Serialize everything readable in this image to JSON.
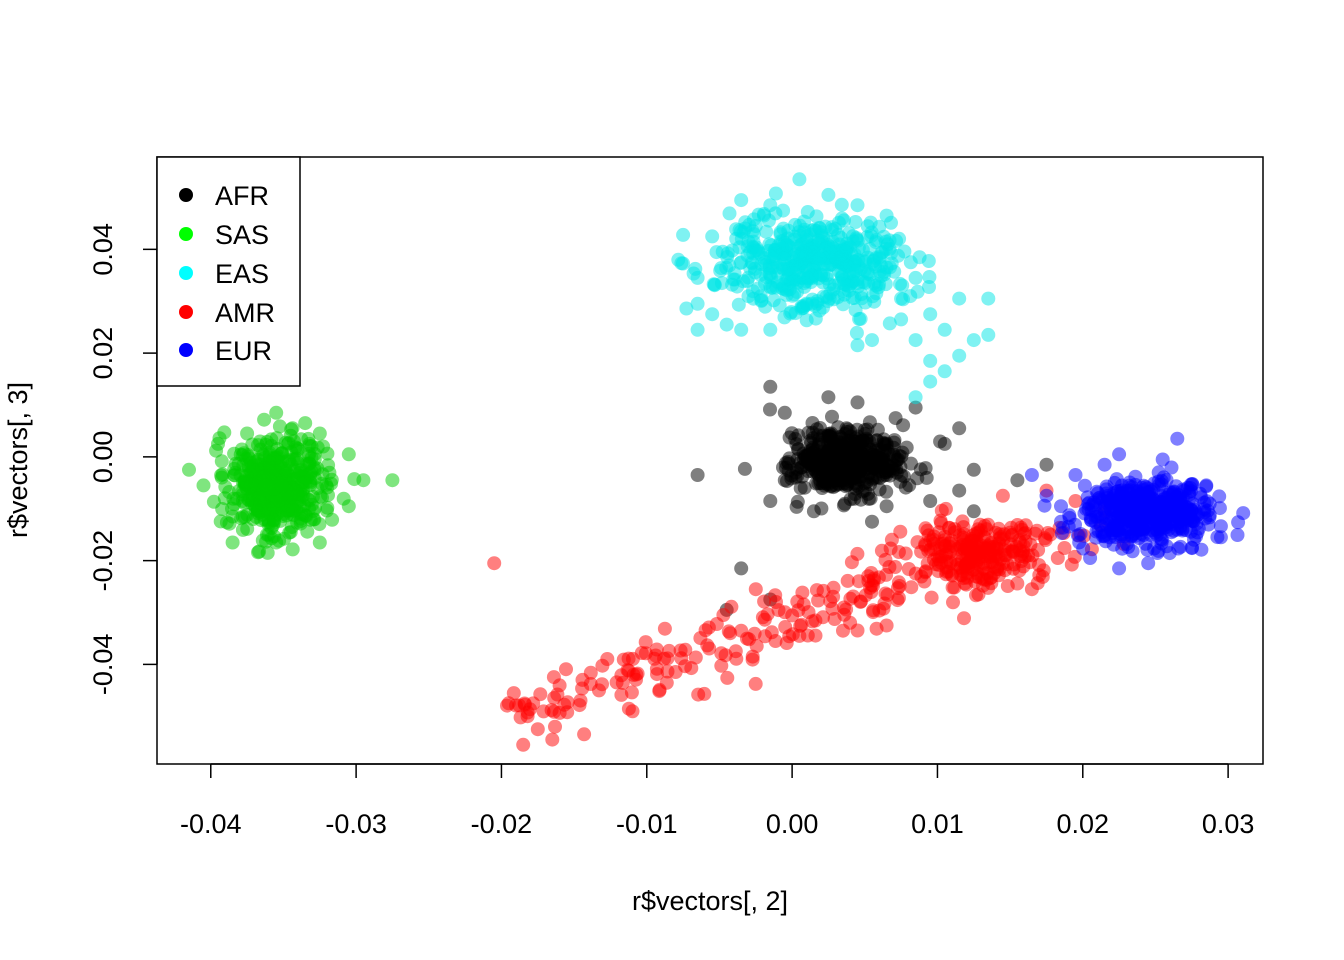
{
  "chart_data": {
    "type": "scatter",
    "title": "",
    "xlabel": "r$vectors[, 2]",
    "ylabel": "r$vectors[, 3]",
    "xlim": [
      -0.0437,
      0.0324
    ],
    "ylim": [
      -0.0592,
      0.0578
    ],
    "xticks": [
      {
        "value": -0.04,
        "label": "-0.04"
      },
      {
        "value": -0.03,
        "label": "-0.03"
      },
      {
        "value": -0.02,
        "label": "-0.02"
      },
      {
        "value": -0.01,
        "label": "-0.01"
      },
      {
        "value": 0.0,
        "label": "0.00"
      },
      {
        "value": 0.01,
        "label": "0.01"
      },
      {
        "value": 0.02,
        "label": "0.02"
      },
      {
        "value": 0.03,
        "label": "0.03"
      }
    ],
    "yticks": [
      {
        "value": -0.04,
        "label": "-0.04"
      },
      {
        "value": -0.02,
        "label": "-0.02"
      },
      {
        "value": 0.0,
        "label": "0.00"
      },
      {
        "value": 0.02,
        "label": "0.02"
      },
      {
        "value": 0.04,
        "label": "0.04"
      }
    ],
    "grid": false,
    "legend": "top-left",
    "point_alpha": 0.5,
    "series": [
      {
        "name": "AFR",
        "color": "#000000",
        "cluster": {
          "cx": 0.0038,
          "cy": -0.001,
          "sx": 0.0018,
          "sy": 0.0032,
          "n": 500
        },
        "points": [
          [
            -0.0015,
            0.0135
          ],
          [
            0.0025,
            0.0115
          ],
          [
            0.0045,
            0.0105
          ],
          [
            -0.0005,
            0.0085
          ],
          [
            0.0085,
            0.0095
          ],
          [
            0.0115,
            0.0055
          ],
          [
            0.0105,
            0.0025
          ],
          [
            0.0125,
            -0.0025
          ],
          [
            0.0115,
            -0.0065
          ],
          [
            0.0065,
            -0.0095
          ],
          [
            0.0055,
            -0.0125
          ],
          [
            0.0015,
            -0.0105
          ],
          [
            -0.0015,
            -0.0085
          ],
          [
            -0.0005,
            -0.0045
          ],
          [
            -0.0065,
            -0.0035
          ],
          [
            0.0175,
            -0.0015
          ],
          [
            0.0155,
            -0.0045
          ],
          [
            -0.0035,
            -0.0215
          ],
          [
            -0.0045,
            -0.0295
          ],
          [
            -0.0015,
            -0.0275
          ],
          [
            0.0095,
            -0.0085
          ],
          [
            0.0125,
            -0.0105
          ]
        ]
      },
      {
        "name": "SAS",
        "color": "#00cc00",
        "cluster": {
          "cx": -0.0355,
          "cy": -0.0055,
          "sx": 0.0016,
          "sy": 0.0045,
          "n": 500
        },
        "points": [
          [
            -0.0355,
            0.0085
          ],
          [
            -0.0335,
            0.0065
          ],
          [
            -0.0375,
            0.0045
          ],
          [
            -0.0395,
            0.0025
          ],
          [
            -0.0415,
            -0.0025
          ],
          [
            -0.0405,
            -0.0055
          ],
          [
            -0.0385,
            -0.0115
          ],
          [
            -0.0355,
            -0.0165
          ],
          [
            -0.0325,
            -0.0165
          ],
          [
            -0.0305,
            -0.0095
          ],
          [
            -0.0295,
            -0.0045
          ],
          [
            -0.0275,
            -0.0045
          ],
          [
            -0.0325,
            0.0045
          ],
          [
            -0.0305,
            0.0005
          ],
          [
            -0.0385,
            -0.0165
          ],
          [
            -0.0345,
            -0.0145
          ]
        ]
      },
      {
        "name": "EAS",
        "color": "#00e5e5",
        "cluster": {
          "cx": 0.0015,
          "cy": 0.0375,
          "sx": 0.0033,
          "sy": 0.0045,
          "n": 480
        },
        "points": [
          [
            -0.0035,
            0.0495
          ],
          [
            -0.0015,
            0.0485
          ],
          [
            0.0005,
            0.0535
          ],
          [
            0.0025,
            0.0505
          ],
          [
            0.0045,
            0.0485
          ],
          [
            -0.0055,
            0.0425
          ],
          [
            -0.0065,
            0.0345
          ],
          [
            -0.0065,
            0.0295
          ],
          [
            -0.0055,
            0.0275
          ],
          [
            -0.0045,
            0.0255
          ],
          [
            -0.0065,
            0.0245
          ],
          [
            -0.0035,
            0.0245
          ],
          [
            -0.0015,
            0.0245
          ],
          [
            0.0045,
            0.0215
          ],
          [
            0.0055,
            0.0225
          ],
          [
            0.0075,
            0.0265
          ],
          [
            0.0085,
            0.0225
          ],
          [
            0.0095,
            0.0185
          ],
          [
            0.0095,
            0.0145
          ],
          [
            0.0085,
            0.0115
          ],
          [
            0.0105,
            0.0245
          ],
          [
            0.0115,
            0.0305
          ],
          [
            0.0125,
            0.0225
          ],
          [
            0.0135,
            0.0305
          ],
          [
            0.0135,
            0.0235
          ],
          [
            0.0095,
            0.0275
          ],
          [
            0.0075,
            0.0305
          ],
          [
            0.0105,
            0.0165
          ],
          [
            0.0115,
            0.0195
          ],
          [
            0.0065,
            0.0365
          ],
          [
            0.0085,
            0.0345
          ],
          [
            -0.0025,
            0.0445
          ],
          [
            0.0065,
            0.0465
          ],
          [
            0.0045,
            0.0335
          ]
        ]
      },
      {
        "name": "AMR",
        "color": "#ff0000",
        "cluster": {
          "cx": 0.0125,
          "cy": -0.0185,
          "sx": 0.0025,
          "sy": 0.0035,
          "n": 220
        },
        "line": {
          "x0": -0.019,
          "y0": -0.0505,
          "x1": 0.019,
          "y1": -0.0135,
          "n": 230,
          "jitter": 0.0045
        },
        "points": [
          [
            -0.0205,
            -0.0205
          ],
          [
            -0.0185,
            -0.0555
          ],
          [
            -0.0195,
            -0.0475
          ],
          [
            -0.0165,
            -0.0545
          ],
          [
            -0.0175,
            -0.0525
          ],
          [
            0.0145,
            -0.0075
          ],
          [
            0.0175,
            -0.0065
          ],
          [
            0.0195,
            -0.0085
          ],
          [
            0.0215,
            -0.0105
          ],
          [
            0.0165,
            -0.0255
          ],
          [
            0.0065,
            -0.0325
          ],
          [
            0.0035,
            -0.0335
          ],
          [
            0.0005,
            -0.0345
          ],
          [
            -0.0035,
            -0.0335
          ],
          [
            -0.0025,
            -0.0255
          ]
        ]
      },
      {
        "name": "EUR",
        "color": "#0000ff",
        "cluster": {
          "cx": 0.0242,
          "cy": -0.0105,
          "sx": 0.0022,
          "sy": 0.003,
          "n": 500
        },
        "points": [
          [
            0.0165,
            -0.0035
          ],
          [
            0.0265,
            0.0035
          ],
          [
            0.0295,
            -0.0155
          ],
          [
            0.0285,
            -0.0055
          ],
          [
            0.0225,
            -0.0215
          ],
          [
            0.0205,
            -0.0195
          ],
          [
            0.0185,
            -0.0125
          ],
          [
            0.0175,
            -0.0075
          ],
          [
            0.0245,
            -0.0205
          ],
          [
            0.0275,
            -0.0175
          ],
          [
            0.0255,
            -0.0005
          ],
          [
            0.0225,
            0.0005
          ],
          [
            0.0195,
            -0.0035
          ],
          [
            0.0185,
            -0.0095
          ],
          [
            0.0215,
            -0.0015
          ]
        ]
      }
    ]
  }
}
